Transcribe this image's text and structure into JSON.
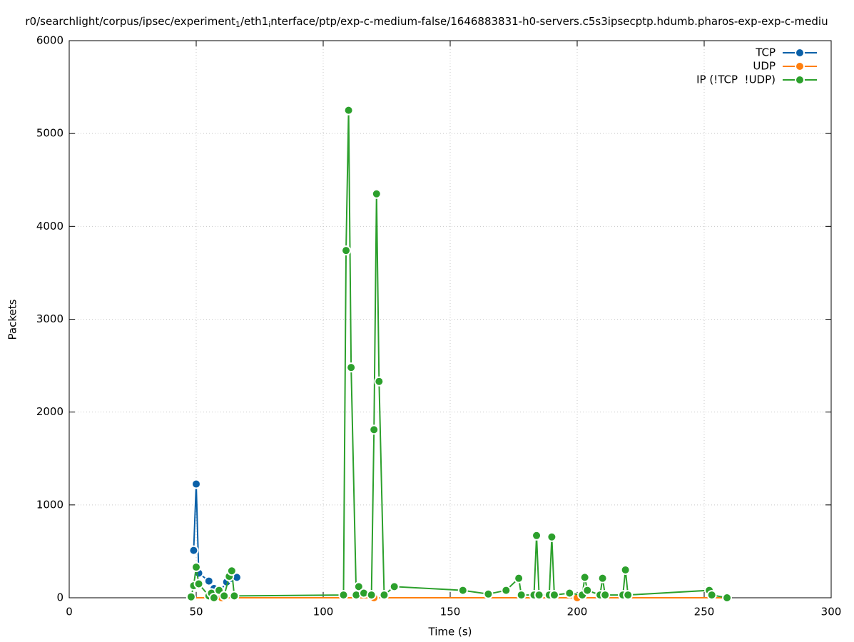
{
  "chart_data": {
    "type": "line",
    "title": [
      "r0/searchlight/corpus/ipsec/experiment",
      "1",
      "/eth1",
      "i",
      "nterface/ptp/exp-c-medium-false/1646883831-h0-servers.c5s3ipsecptp.hdumb.pharos-exp-exp-c-mediu"
    ],
    "x_label": "Time (s)",
    "y_label": "Packets",
    "xlim": [
      0,
      300
    ],
    "ylim": [
      0,
      6000
    ],
    "xticks": [
      0,
      50,
      100,
      150,
      200,
      250,
      300
    ],
    "yticks": [
      0,
      1000,
      2000,
      3000,
      4000,
      5000,
      6000
    ],
    "grid": true,
    "legend": "top-right",
    "series": [
      {
        "name": "TCP",
        "color": "#0a60a8",
        "x": [
          49,
          50,
          51,
          55,
          57,
          59,
          62,
          64,
          66
        ],
        "values": [
          510,
          1225,
          265,
          180,
          100,
          60,
          170,
          210,
          220
        ]
      },
      {
        "name": "UDP",
        "color": "#ff7f0e",
        "x": [
          48,
          60,
          120,
          200,
          259
        ],
        "values": [
          0,
          0,
          0,
          0,
          0
        ]
      },
      {
        "name": "IP (!TCP  !UDP)",
        "color": "#2ca02c",
        "x": [
          48,
          49,
          50,
          51,
          55,
          56,
          57,
          59,
          61,
          63,
          64,
          65,
          108,
          109,
          110,
          111,
          113,
          114,
          116,
          119,
          120,
          121,
          122,
          124,
          128,
          155,
          165,
          172,
          177,
          178,
          183,
          184,
          185,
          189,
          190,
          191,
          197,
          202,
          203,
          204,
          209,
          210,
          211,
          218,
          219,
          220,
          252,
          253,
          259
        ],
        "values": [
          10,
          130,
          330,
          150,
          20,
          50,
          0,
          80,
          20,
          230,
          290,
          20,
          30,
          3740,
          5250,
          2480,
          30,
          120,
          50,
          30,
          1810,
          4350,
          2330,
          30,
          120,
          80,
          40,
          80,
          210,
          30,
          30,
          670,
          30,
          30,
          655,
          30,
          50,
          30,
          220,
          80,
          30,
          210,
          30,
          30,
          300,
          30,
          80,
          30,
          0
        ]
      }
    ]
  }
}
